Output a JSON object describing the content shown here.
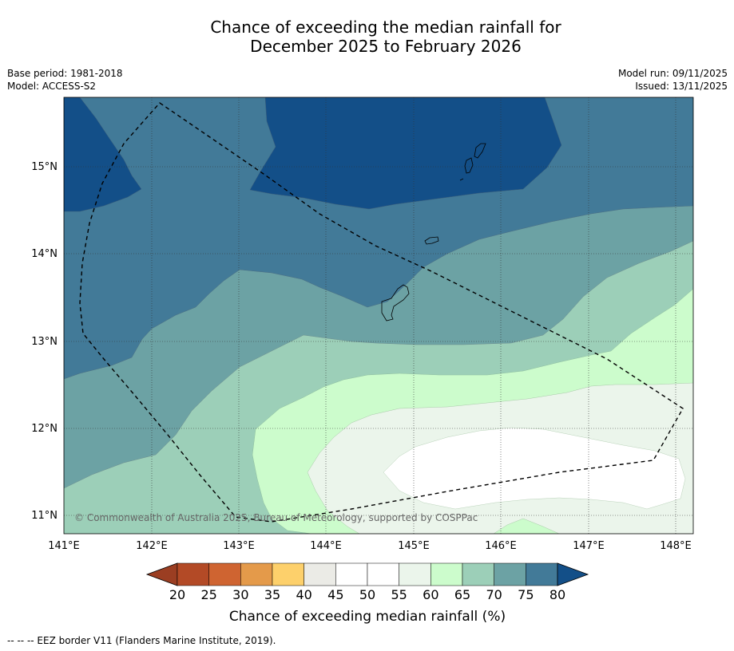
{
  "title": {
    "line1": "Chance of exceeding the median rainfall for",
    "line2": "December 2025 to February 2026"
  },
  "meta": {
    "base_period": "Base period: 1981-2018",
    "model": "Model: ACCESS-S2",
    "model_run": "Model run: 09/11/2025",
    "issued": "Issued: 13/11/2025"
  },
  "map": {
    "lon_range": [
      141,
      148.2
    ],
    "lat_range": [
      10.8,
      15.8
    ],
    "lon_ticks": [
      "141°E",
      "142°E",
      "143°E",
      "144°E",
      "145°E",
      "146°E",
      "147°E",
      "148°E"
    ],
    "lat_ticks": [
      "15°N",
      "14°N",
      "13°N",
      "12°N",
      "11°N"
    ],
    "copyright": "© Commonwealth of Australia 2025, Bureau of Meteorology, supported by COSPPac"
  },
  "colorbar": {
    "title": "Chance of exceeding median rainfall (%)",
    "labels": [
      "20",
      "25",
      "30",
      "35",
      "40",
      "45",
      "50",
      "55",
      "60",
      "65",
      "70",
      "75",
      "80"
    ],
    "colors": [
      "#b34a26",
      "#cf6431",
      "#e49a4a",
      "#fdd06b",
      "#ebebe6",
      "#ffffff",
      "#ffffff",
      "#ebf5eb",
      "#ccfccc",
      "#9ccfb8",
      "#6ca2a4",
      "#427a98"
    ],
    "under_color": "#9b3e22",
    "over_color": "#134f88"
  },
  "footnote": "-- -- -- EEZ border V11 (Flanders Marine Institute, 2019)."
}
